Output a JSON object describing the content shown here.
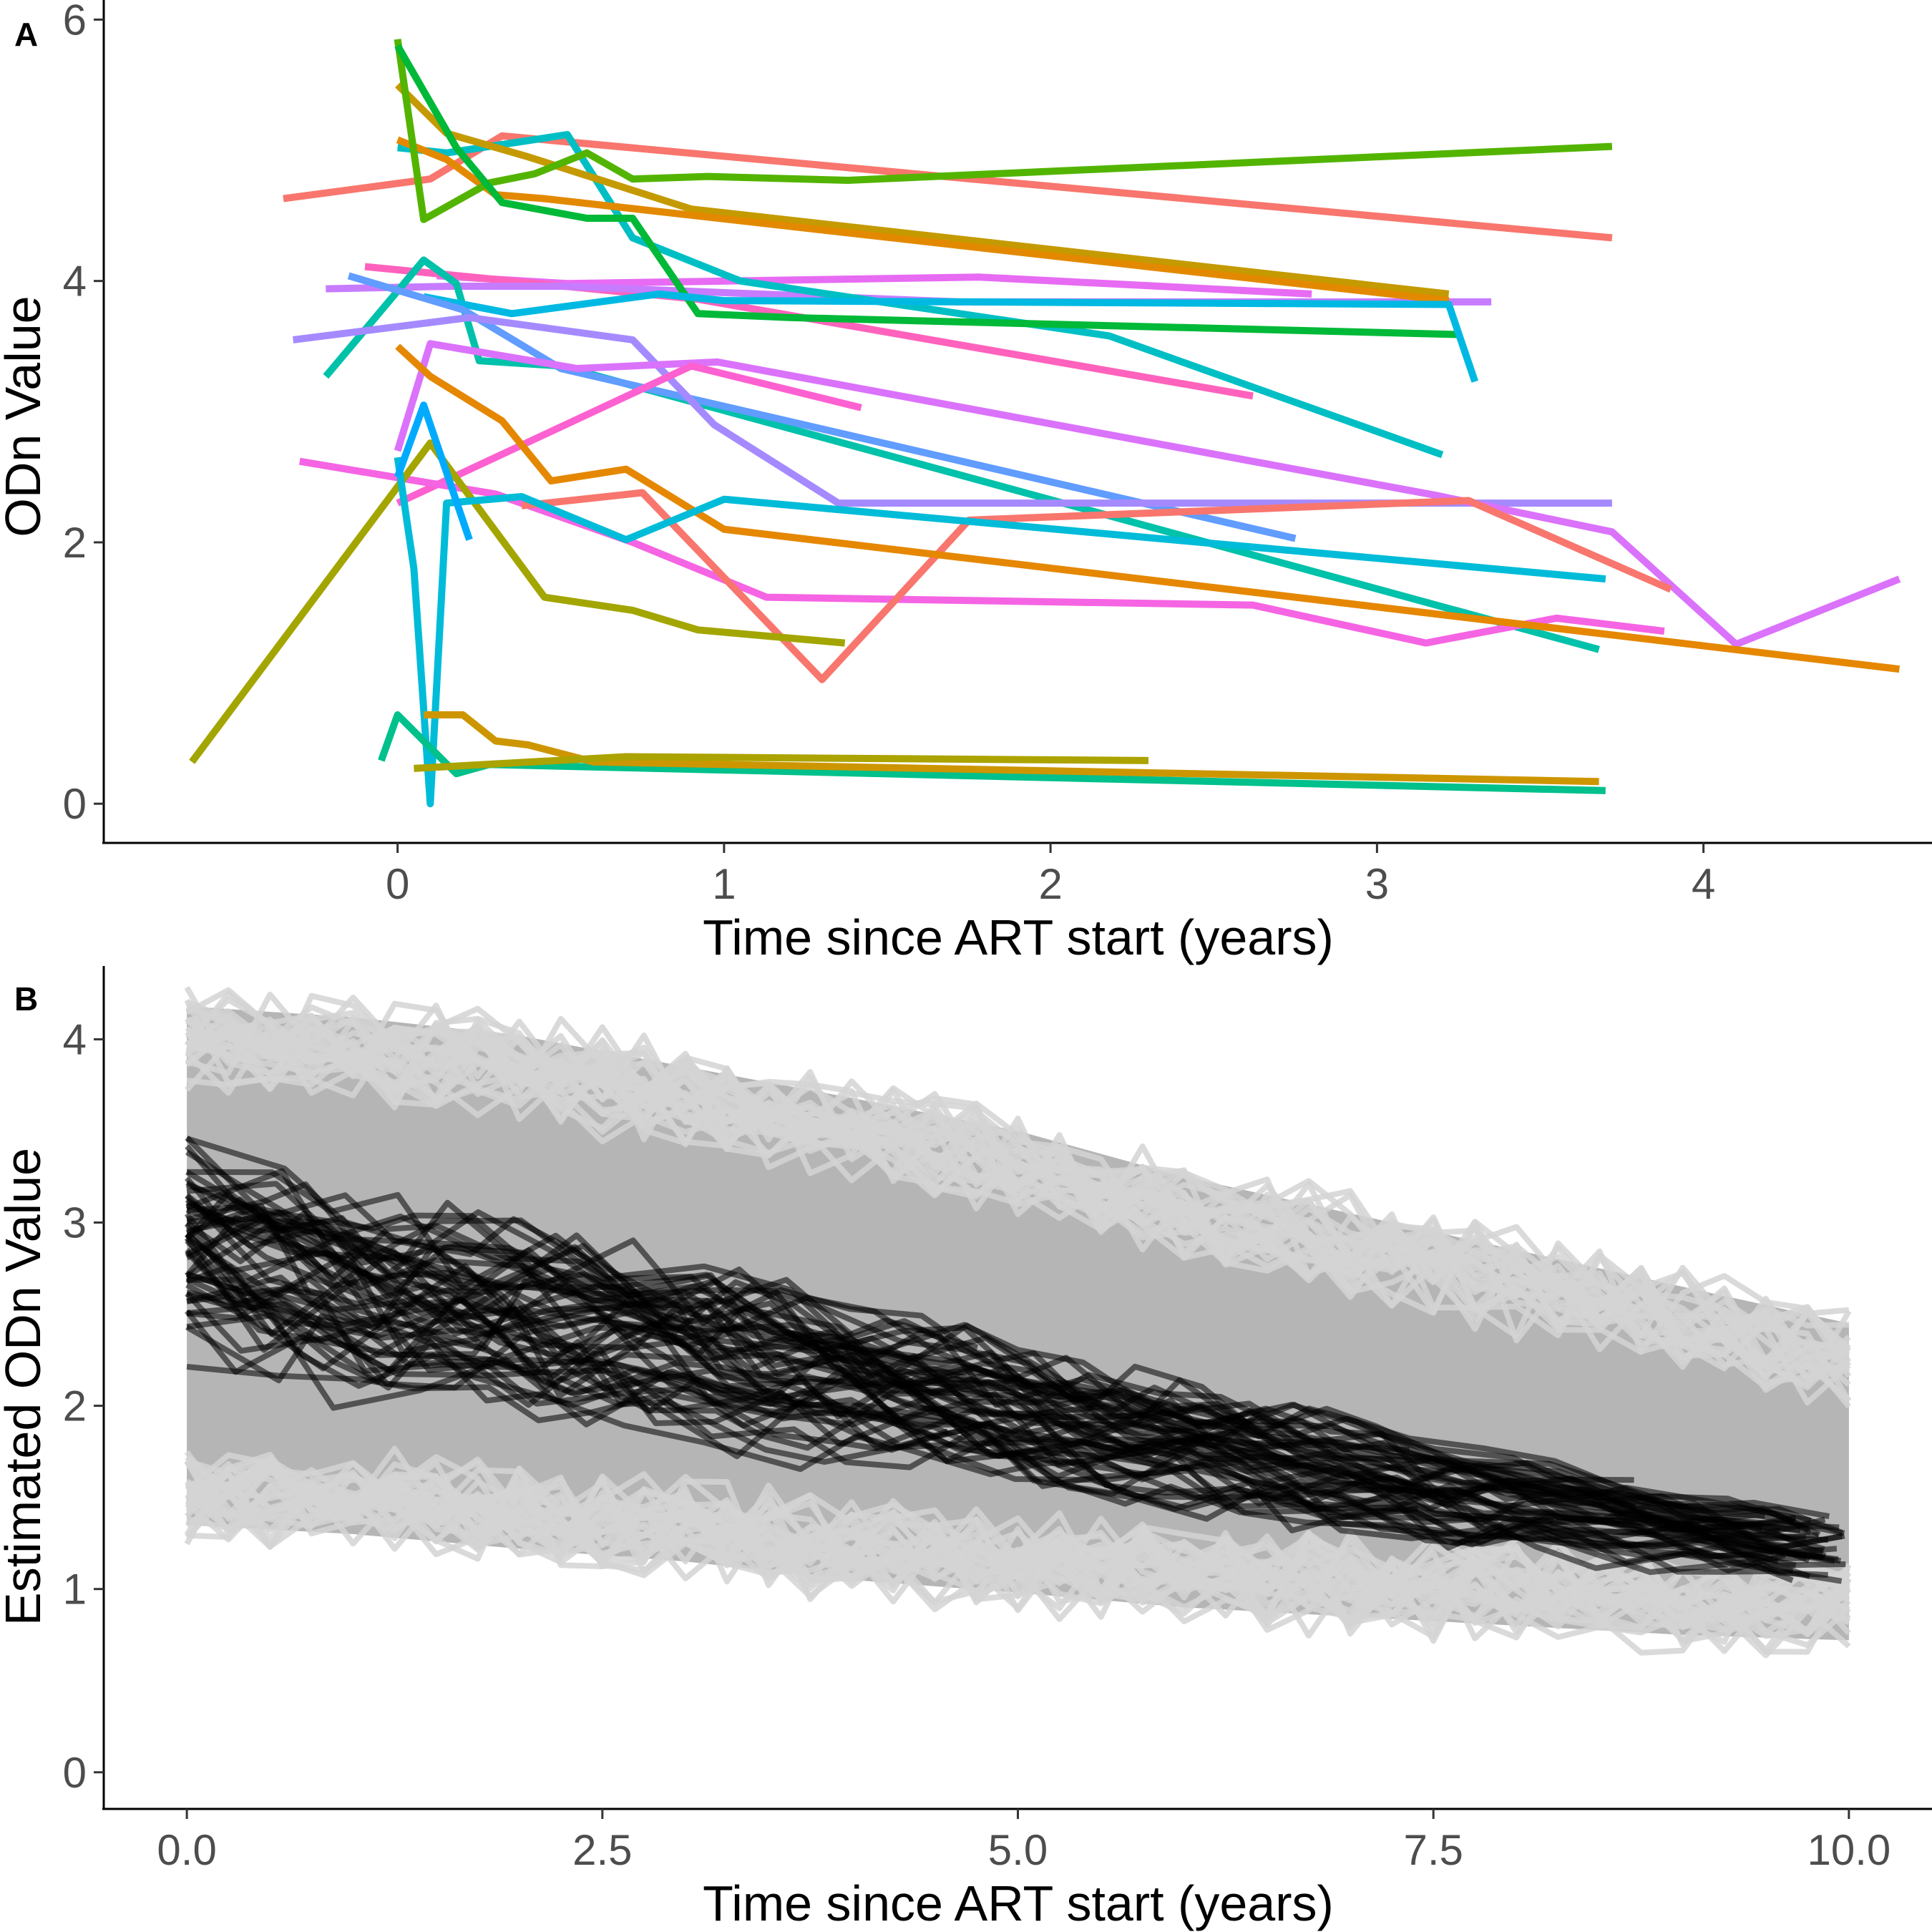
{
  "chart_data": [
    {
      "panel": "A",
      "type": "line",
      "xlabel": "Time since ART start (years)",
      "ylabel": "ODn Value",
      "xlim": [
        -0.9,
        4.7
      ],
      "ylim": [
        -0.3,
        6.15
      ],
      "xticks": [
        0,
        1,
        2,
        3,
        4
      ],
      "xtick_labels": [
        "0",
        "1",
        "2",
        "3",
        "4"
      ],
      "yticks": [
        0,
        2,
        4,
        6
      ],
      "ytick_labels": [
        "0",
        "2",
        "4",
        "6"
      ],
      "grid": false,
      "legend": "none",
      "series": [
        {
          "color": "#F8766D",
          "x": [
            -0.35,
            0.1,
            0.32,
            3.72
          ],
          "y": [
            4.63,
            4.78,
            5.11,
            4.33
          ]
        },
        {
          "color": "#E76BF3",
          "x": [
            0.12,
            0.52,
            1.78,
            2.8
          ],
          "y": [
            4.04,
            3.98,
            4.03,
            3.9
          ]
        },
        {
          "color": "#FF62BC",
          "x": [
            -0.1,
            0.92,
            2.62
          ],
          "y": [
            4.11,
            3.86,
            3.12
          ]
        },
        {
          "color": "#C77CFF",
          "x": [
            -0.22,
            0.17,
            0.5,
            1.72,
            3.35
          ],
          "y": [
            3.94,
            3.96,
            3.96,
            3.84,
            3.84
          ]
        },
        {
          "color": "#00BFC4",
          "x": [
            0.0,
            0.15,
            0.52,
            0.72,
            1.05,
            2.18,
            3.2
          ],
          "y": [
            5.02,
            4.98,
            5.12,
            4.33,
            4.0,
            3.58,
            2.67
          ]
        },
        {
          "color": "#C49A00",
          "x": [
            0.0,
            0.15,
            0.4,
            0.9,
            3.22
          ],
          "y": [
            5.5,
            5.13,
            4.95,
            4.55,
            3.9
          ]
        },
        {
          "color": "#E38900",
          "x": [
            0.0,
            0.15,
            0.3,
            0.45,
            3.22
          ],
          "y": [
            5.08,
            4.93,
            4.66,
            4.63,
            3.85
          ]
        },
        {
          "color": "#53B400",
          "x": [
            0.0,
            0.08,
            0.28,
            0.42,
            0.58,
            0.72,
            0.95,
            1.38,
            3.72
          ],
          "y": [
            5.85,
            4.47,
            4.75,
            4.82,
            4.98,
            4.78,
            4.8,
            4.77,
            5.03
          ]
        },
        {
          "color": "#00B938",
          "x": [
            0.0,
            0.18,
            0.32,
            0.58,
            0.72,
            0.92,
            1.2,
            3.25
          ],
          "y": [
            5.8,
            5.02,
            4.6,
            4.48,
            4.48,
            3.75,
            3.72,
            3.59
          ]
        },
        {
          "color": "#00C1AA",
          "x": [
            -0.22,
            0.08,
            0.18,
            0.25,
            0.5,
            3.68
          ],
          "y": [
            3.27,
            4.16,
            3.98,
            3.39,
            3.35,
            1.18
          ]
        },
        {
          "color": "#00B9E3",
          "x": [
            0.08,
            0.35,
            0.8,
            1.0,
            3.22,
            3.3
          ],
          "y": [
            3.88,
            3.75,
            3.9,
            3.85,
            3.82,
            3.23
          ]
        },
        {
          "color": "#619CFF",
          "x": [
            -0.15,
            0.2,
            0.5,
            2.75
          ],
          "y": [
            4.04,
            3.78,
            3.33,
            2.03
          ]
        },
        {
          "color": "#A58AFF",
          "x": [
            -0.32,
            0.22,
            0.72,
            0.97,
            1.35,
            3.72
          ],
          "y": [
            3.55,
            3.72,
            3.55,
            2.9,
            2.3,
            2.3
          ]
        },
        {
          "color": "#DB72FB",
          "x": [
            0.0,
            0.1,
            0.55,
            0.98,
            3.18,
            3.72,
            4.1,
            4.6
          ],
          "y": [
            2.7,
            3.52,
            3.33,
            3.38,
            2.36,
            2.08,
            1.22,
            1.72
          ]
        },
        {
          "color": "#FD61D1",
          "x": [
            0.0,
            0.9,
            1.42
          ],
          "y": [
            2.3,
            3.35,
            3.03
          ]
        },
        {
          "color": "#F564E3",
          "x": [
            -0.3,
            0.3,
            0.72,
            1.13,
            2.62,
            3.15,
            3.55,
            3.88
          ],
          "y": [
            2.62,
            2.37,
            2.0,
            1.58,
            1.52,
            1.23,
            1.42,
            1.32
          ]
        },
        {
          "color": "#F8766D",
          "x": [
            0.38,
            0.75,
            1.3,
            1.75,
            3.28,
            3.9
          ],
          "y": [
            2.28,
            2.38,
            0.95,
            2.17,
            2.32,
            1.64
          ]
        },
        {
          "color": "#E58700",
          "x": [
            0.0,
            0.1,
            0.32,
            0.47,
            0.7,
            1.0,
            4.6
          ],
          "y": [
            3.5,
            3.27,
            2.93,
            2.47,
            2.56,
            2.1,
            1.03
          ]
        },
        {
          "color": "#A3A500",
          "x": [
            -0.63,
            0.1,
            0.45,
            0.72,
            0.92,
            1.37
          ],
          "y": [
            0.32,
            2.76,
            1.58,
            1.48,
            1.33,
            1.23
          ]
        },
        {
          "color": "#00BCD8",
          "x": [
            0.0,
            0.05,
            0.1,
            0.15,
            0.38,
            0.7,
            1.0,
            3.7
          ],
          "y": [
            2.65,
            1.8,
            0.0,
            2.3,
            2.35,
            2.02,
            2.33,
            1.72
          ]
        },
        {
          "color": "#00ABFD",
          "x": [
            -0.0,
            0.08,
            0.22
          ],
          "y": [
            2.5,
            3.05,
            2.02
          ]
        },
        {
          "color": "#00C08B",
          "x": [
            -0.05,
            0.0,
            0.18,
            0.28,
            3.7
          ],
          "y": [
            0.33,
            0.68,
            0.23,
            0.3,
            0.1
          ]
        },
        {
          "color": "#CD9600",
          "x": [
            0.08,
            0.2,
            0.3,
            0.4,
            0.6,
            3.68
          ],
          "y": [
            0.68,
            0.68,
            0.48,
            0.45,
            0.32,
            0.17
          ]
        },
        {
          "color": "#ABA300",
          "x": [
            0.05,
            0.7,
            2.3
          ],
          "y": [
            0.27,
            0.36,
            0.33
          ]
        }
      ]
    },
    {
      "panel": "B",
      "type": "line",
      "xlabel": "Time since ART start (years)",
      "ylabel": "Estimated ODn Value",
      "xlim": [
        -0.5,
        10.5
      ],
      "ylim": [
        -0.2,
        4.4
      ],
      "xticks": [
        0,
        2.5,
        5,
        7.5,
        10
      ],
      "xtick_labels": [
        "0.0",
        "2.5",
        "5.0",
        "7.5",
        "10.0"
      ],
      "yticks": [
        0,
        1,
        2,
        3,
        4
      ],
      "ytick_labels": [
        "0",
        "1",
        "2",
        "3",
        "4"
      ],
      "grid": false,
      "legend": "none",
      "band": {
        "color": "#b5b5b5",
        "x": [
          0.0,
          1.0,
          2.0,
          3.0,
          4.0,
          5.0,
          6.0,
          7.0,
          8.0,
          9.0,
          10.0
        ],
        "upper": [
          4.18,
          4.12,
          4.02,
          3.85,
          3.68,
          3.5,
          3.25,
          3.05,
          2.85,
          2.65,
          2.45
        ],
        "lower": [
          1.35,
          1.3,
          1.22,
          1.15,
          1.05,
          0.98,
          0.9,
          0.85,
          0.8,
          0.75,
          0.72
        ]
      },
      "mean_trend": {
        "x": [
          0.0,
          1.0,
          2.0,
          3.0,
          4.0,
          5.0,
          6.0,
          7.0,
          8.0,
          9.0,
          10.0
        ],
        "y": [
          2.85,
          2.6,
          2.45,
          2.3,
          2.12,
          1.92,
          1.77,
          1.6,
          1.46,
          1.32,
          1.2
        ]
      },
      "simulated_light_lines": 60,
      "simulated_dark_lines": 55,
      "line_colors": {
        "light": "#d3d3d3",
        "dark": "#000000"
      }
    }
  ],
  "panels": {
    "a": {
      "label": "A"
    },
    "b": {
      "label": "B"
    }
  }
}
